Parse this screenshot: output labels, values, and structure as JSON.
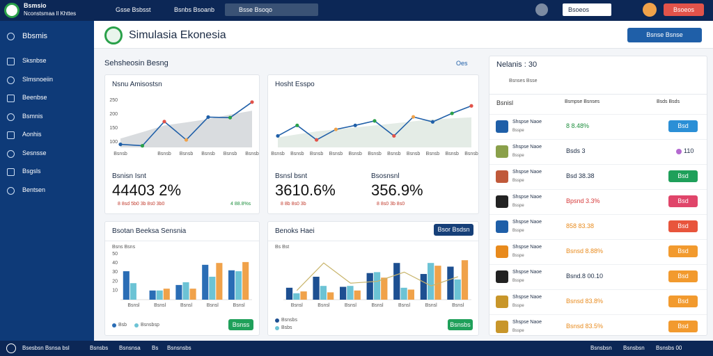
{
  "topbar": {
    "brand": "Bsmsio",
    "brand_sub": "Nconstsmaa ll Khttes",
    "tabs": [
      "Gsse Bsbsst",
      "Bsnbs Bsoanb"
    ],
    "search": "Bsse Bsoqo",
    "select": "Bsoeos",
    "action": "Bsoeos"
  },
  "sidebar": {
    "items": [
      "Bbsmis",
      "Sksnbse",
      "Slmsnoeiin",
      "Beenbse",
      "Bsmnis",
      "Aonhis",
      "Sesnsse",
      "Bsgsls",
      "Bentsen"
    ]
  },
  "header": {
    "title": "Simulasia Ekonesia",
    "button": "Bsnse Bsnse"
  },
  "section": {
    "title": "Sehsheosin Besng",
    "filter": "Oes"
  },
  "cards": [
    {
      "title": "Nsnu Amisostsn",
      "chart": {
        "type": "line",
        "categories": [
          "Bsnsb",
          null,
          "Bsnsb",
          "Bsnsb",
          "Bsnsb",
          "Bsnsb",
          "Bsnsb"
        ],
        "ylim": [
          80,
          260
        ],
        "yticks": [
          100,
          150,
          200,
          250
        ],
        "series": [
          {
            "color": "#d9dcdf",
            "kind": "area",
            "values": [
              112,
              135,
              159,
              170,
              182,
              198,
              212
            ]
          },
          {
            "color": "#1f5fa8",
            "values": [
              91,
              86,
              173,
              107,
              189,
              187,
              243
            ]
          }
        ]
      },
      "stats": [
        {
          "label": "Bsnisn Isnt",
          "value": "44403 2%",
          "note": "8 8sd 5b0 3b 8s0 3b0",
          "change": "4 88.8%s"
        }
      ]
    },
    {
      "title": "Hosht Esspo",
      "chart": {
        "type": "line",
        "categories": [
          "Bsnsb",
          "Bsnsb",
          "Bsnsb",
          "Bsnsb",
          "Bsnsb",
          "Bsnsb",
          "Bsnsb",
          "Bsnsb",
          "Bsnsb",
          "Bsnsb",
          "Bsnsb"
        ],
        "ylim": [
          0,
          100
        ],
        "series": [
          {
            "color": "#e4ece6",
            "kind": "area",
            "values": [
              20,
              26,
              32,
              36,
              40,
              44,
              48,
              52,
              56,
              58,
              60
            ]
          },
          {
            "color": "#1f5fa8",
            "values": [
              23,
              44,
              15,
              36,
              44,
              53,
              23,
              61,
              51,
              68,
              83
            ]
          }
        ]
      },
      "stats": [
        {
          "label": "Bsnsl bsnt",
          "value": "3610.6%",
          "note": "8 8b 8s0 3b"
        },
        {
          "label": "Bsosnsnl",
          "value": "356.9%",
          "note": "8 8s0 3b 8s0"
        }
      ]
    },
    {
      "title": "Bsotan Beeksa Sensnia",
      "ylabel": "Bsns Bsns",
      "button": "Bsnss",
      "legend": [
        "Bsb",
        "Bsnsbsp"
      ],
      "chart": {
        "type": "bar",
        "categories": [
          "Bsnsl",
          "Bsnsl",
          "Bsnsl",
          "Bsnsl",
          "Bsnsl"
        ],
        "ylim": [
          0,
          50
        ],
        "yticks": [
          10,
          20,
          30,
          40,
          50
        ],
        "series": [
          {
            "color": "#2a6db5",
            "values": [
              31,
              10,
              16,
              38,
              32
            ]
          },
          {
            "color": "#6cc3d5",
            "values": [
              18,
              10,
              19,
              25,
              31
            ]
          },
          {
            "color": "#f0a24a",
            "values": [
              null,
              12,
              12,
              40,
              41
            ]
          }
        ]
      }
    },
    {
      "title": "Benoks Haei",
      "ylabel": "Bs Bst",
      "button": "Bsnsbs",
      "top_button": "Bsor Bsdsn",
      "legend": [
        "Bsnsbs",
        "Bsbs"
      ],
      "chart": {
        "type": "bar",
        "categories": [
          "Bsnsl",
          "Bsnsl",
          "Bsnsl",
          "Bsnsl",
          "Bsnsl",
          "Bsnsl",
          "Bsnsl"
        ],
        "ylim": [
          0,
          50
        ],
        "series": [
          {
            "color": "#1d4f91",
            "values": [
              13,
              25,
              14,
              29,
              40,
              28,
              36
            ]
          },
          {
            "color": "#6cc3d5",
            "values": [
              7,
              15,
              15,
              30,
              13,
              40,
              22
            ]
          },
          {
            "color": "#f0a24a",
            "values": [
              9,
              8,
              10,
              24,
              11,
              37,
              43
            ]
          },
          {
            "color": "#c8b46a",
            "kind": "line",
            "values": [
              10,
              40,
              18,
              20,
              30,
              15,
              25
            ]
          }
        ]
      }
    }
  ],
  "panel": {
    "title": "Nelanis : 30",
    "subtitle": "Bsnses Bsse",
    "columns": [
      "Bsnisl",
      "Bsmpse Bsnses",
      "Bsds Bsds"
    ],
    "rows": [
      {
        "name": "Shspse Naoe",
        "sub": "Bsspe",
        "value": "8 8.48%",
        "action": "Bsd",
        "color": "#2b8fd6",
        "vcolor": "#1e8f3e"
      },
      {
        "name": "Shspse Naoe",
        "sub": "Bsspe",
        "value": "Bsds 3",
        "action": "110",
        "color": "",
        "vcolor": "#1b2b44"
      },
      {
        "name": "Shspse Naoe",
        "sub": "Bsspe",
        "value": "Bsd 38.38",
        "action": "Bsd",
        "color": "#1fa05a",
        "vcolor": "#1b2b44"
      },
      {
        "name": "Shspse Naoe",
        "sub": "Bsspe",
        "value": "Bpsnd 3.3%",
        "action": "Bsd",
        "color": "#e0456a",
        "vcolor": "#d63a3a"
      },
      {
        "name": "Shspse Naoe",
        "sub": "Bsspe",
        "value": "858 83.38",
        "action": "Bsd",
        "color": "#e8553c",
        "vcolor": "#e88a1c"
      },
      {
        "name": "Shspse Naoe",
        "sub": "Bsspe",
        "value": "Bsnsd 8.88%",
        "action": "Bsd",
        "color": "#f29a2e",
        "vcolor": "#e88a1c"
      },
      {
        "name": "Shspse Naoe",
        "sub": "Bsspe",
        "value": "Bsnd.8 00.10",
        "action": "Bsd",
        "color": "#f29a2e",
        "vcolor": "#1b2b44"
      },
      {
        "name": "Shspse Naoe",
        "sub": "Bsspe",
        "value": "Bsnsd 83.8%",
        "action": "Bsd",
        "color": "#f29a2e",
        "vcolor": "#e88a1c"
      },
      {
        "name": "Shspse Naoe",
        "sub": "Bsspe",
        "value": "Bsnsd 83.5%",
        "action": "Bsd",
        "color": "#f29a2e",
        "vcolor": "#e88a1c"
      }
    ]
  },
  "footer": {
    "left": [
      "Bsesbsn Bsnsa bsl",
      "Bsnsbs",
      "Bsnsnsa",
      "Bs",
      "Bsnsnsbs"
    ],
    "right": [
      "Bsnsbsn",
      "Bsnsbsn",
      "Bsnsbs 00"
    ]
  }
}
